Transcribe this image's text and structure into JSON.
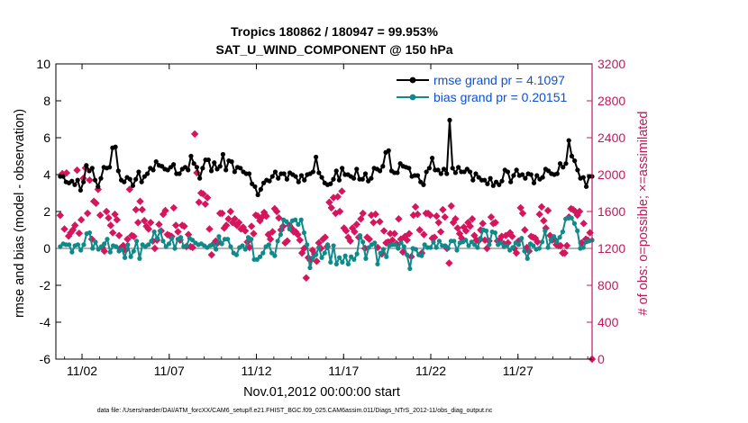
{
  "chart_data": {
    "type": "line",
    "title_line1": "Tropics 180862 / 180947 = 99.953%",
    "title_line2": "SAT_U_WIND_COMPONENT @ 150 hPa",
    "xlabel": "Nov.01,2012 00:00:00 start",
    "ylabel_left": "rmse and bias (model - observation)",
    "ylabel_right": "# of obs: o=possible; ×=assimilated",
    "footer": "data file: /Users/raeder/DAI/ATM_forcXX/CAM6_setup/f.e21.FHIST_BGC.f09_025.CAM6assim.011/Diags_NTrS_2012-11/obs_diag_output.nc",
    "xlim": [
      0.5,
      31.25
    ],
    "ylim_left": [
      -6,
      10
    ],
    "ylim_right": [
      0,
      3200
    ],
    "x_ticks": [
      {
        "value": 2,
        "label": "11/02"
      },
      {
        "value": 7,
        "label": "11/07"
      },
      {
        "value": 12,
        "label": "11/12"
      },
      {
        "value": 17,
        "label": "11/17"
      },
      {
        "value": 22,
        "label": "11/22"
      },
      {
        "value": 27,
        "label": "11/27"
      }
    ],
    "y_ticks_left": [
      -6,
      -4,
      -2,
      0,
      2,
      4,
      6,
      8,
      10
    ],
    "y_ticks_right": [
      0,
      400,
      800,
      1200,
      1600,
      2000,
      2400,
      2800,
      3200
    ],
    "zero_line": 0,
    "colors": {
      "rmse": "#000000",
      "bias": "#0f8a8a",
      "obs": "#d6155d",
      "right_axis": "#c2185b",
      "legend_text": "#0a4fe0",
      "zero_line": "#b4b4b4"
    },
    "series": [
      {
        "name": "rmse grand pr = 4.1097",
        "key": "rmse",
        "axis": "left",
        "values": [
          3.9,
          3.9,
          3.6,
          3.55,
          3.65,
          3.45,
          3.7,
          3.15,
          3.6,
          4.5,
          4.2,
          4.35,
          3.7,
          3.35,
          3.8,
          4.4,
          4.35,
          4.4,
          5.45,
          5.5,
          4.2,
          3.7,
          3.6,
          3.85,
          3.75,
          3.4,
          3.75,
          4.15,
          3.6,
          3.9,
          4.05,
          4.35,
          4.25,
          4.7,
          4.5,
          4.45,
          4.3,
          4.25,
          4.4,
          4.55,
          4.05,
          4.05,
          4.3,
          4.4,
          4.25,
          5,
          4.6,
          4.4,
          3.8,
          4.35,
          4.8,
          4.8,
          4.2,
          4.65,
          4.3,
          4.45,
          5.1,
          4.25,
          4.75,
          4.7,
          4.15,
          4.4,
          4.35,
          4.15,
          4.05,
          4.05,
          3.5,
          3.35,
          2.9,
          3.2,
          3.55,
          3.7,
          3.65,
          3.9,
          4.15,
          3.8,
          4.05,
          4.05,
          3.75,
          4.1,
          4.0,
          3.9,
          3.6,
          3.95,
          3.7,
          4.0,
          4.05,
          4.15,
          4.95,
          4.1,
          3.85,
          3.55,
          3.45,
          3.5,
          3.75,
          4.2,
          3.7,
          4.35,
          4.0,
          4.0,
          3.9,
          3.8,
          4.3,
          3.75,
          3.75,
          4.05,
          3.65,
          3.8,
          4.35,
          4.3,
          4.2,
          4.45,
          5.2,
          5.3,
          4.2,
          4.1,
          4.1,
          4.6,
          4.45,
          4.4,
          4.35,
          3.9,
          3.95,
          3.95,
          3.6,
          3.45,
          4.15,
          4.35,
          4.9,
          4.25,
          4.25,
          4.05,
          4.3,
          4.05,
          6.95,
          4.35,
          4.1,
          4.4,
          4.15,
          4.15,
          4.3,
          4.15,
          3.7,
          4.05,
          3.85,
          3.7,
          3.7,
          3.5,
          3.8,
          3.4,
          3.6,
          3.45,
          3.65,
          4.25,
          4.15,
          3.6,
          3.95,
          4.25,
          3.95,
          4.0,
          3.8,
          4.05,
          4.0,
          3.55,
          3.95,
          3.75,
          3.85,
          4.3,
          4.2,
          4.05,
          4.0,
          4.05,
          4.6,
          4.4,
          4.6,
          5.85,
          5.0,
          4.75,
          4.25,
          3.8,
          3.85,
          3.35,
          3.9,
          3.9
        ]
      },
      {
        "name": "bias grand pr = 0.20151",
        "key": "bias",
        "axis": "left",
        "values": [
          0.1,
          0.25,
          0.2,
          0.2,
          -0.2,
          0.15,
          0.2,
          -0.1,
          0.2,
          0.8,
          0.85,
          0.0,
          0.35,
          -0.05,
          0.1,
          0.25,
          0.5,
          -0.2,
          0.15,
          0.1,
          -0.15,
          -0.05,
          -0.5,
          0.2,
          -0.45,
          -0.15,
          0.4,
          -0.55,
          0.2,
          0.1,
          0.2,
          0.4,
          0.9,
          0.55,
          0.95,
          0.4,
          0.1,
          0.25,
          0.55,
          0.0,
          0.5,
          0.6,
          0.1,
          0.15,
          0.55,
          0.45,
          0.3,
          0.2,
          0.25,
          0.15,
          0.05,
          0.15,
          0.2,
          -0.05,
          0.65,
          0.25,
          0.5,
          0.5,
          0.1,
          -0.25,
          -0.35,
          0.05,
          0.15,
          -0.05,
          0.6,
          0.5,
          -0.6,
          -0.6,
          -0.45,
          -0.25,
          0.1,
          0.2,
          -0.25,
          -0.4,
          0.4,
          0.75,
          1.55,
          1.45,
          1.05,
          1.5,
          1.55,
          1.3,
          1.55,
          0.85,
          0.2,
          -1.05,
          -0.5,
          -0.35,
          0.05,
          -0.5,
          -0.25,
          0.2,
          -0.75,
          0.15,
          -0.85,
          -0.5,
          -0.75,
          -0.4,
          -0.85,
          -0.45,
          -0.6,
          -0.3,
          0.7,
          0.35,
          -0.55,
          0.05,
          0.2,
          0.3,
          -0.85,
          -0.25,
          -0.05,
          -0.45,
          0.15,
          0.2,
          0.2,
          0.0,
          0.3,
          0.1,
          -0.35,
          -1.1,
          0.0,
          -0.05,
          -0.35,
          -0.4,
          0.2,
          0.05,
          0.05,
          0.35,
          0.05,
          0.4,
          0.15,
          0.15,
          0.0,
          0.4,
          0.4,
          -0.1,
          0.3,
          0.35,
          0.45,
          0.15,
          0.35,
          0.2,
          0.05,
          0.55,
          1.0,
          0.95,
          0.2,
          0.9,
          0.85,
          0.2,
          0.3,
          0.1,
          0.15,
          -0.1,
          0.05,
          0.3,
          0.2,
          0.55,
          -0.15,
          -0.55,
          0.25,
          0.15,
          -0.05,
          0.0,
          0.35,
          0.95,
          0.05,
          0.45,
          0.65,
          0.35,
          0.6,
          0.9,
          1.6,
          1.65,
          1.65,
          1.35,
          0.95,
          0.0,
          0.05,
          0.35,
          0.4,
          0.45
        ]
      },
      {
        "name": "# obs assimilated",
        "key": "obs",
        "axis": "right",
        "values": [
          1558,
          2010,
          1410,
          2018,
          1334,
          1370,
          1400,
          1450,
          2048,
          1364,
          1510,
          1960,
          2072,
          1580,
          1940,
          1300,
          1710,
          1690,
          1840,
          1560,
          1210,
          1170,
          1600,
          1530,
          1450,
          1370,
          1570,
          1510,
          1340,
          1210,
          1230,
          1180,
          1300,
          1840,
          1340,
          1330,
          1620,
          1480,
          1710,
          1620,
          1500,
          1440,
          1410,
          1480,
          1280,
          1200,
          1290,
          1460,
          1390,
          1570,
          1610,
          1350,
          1340,
          1330,
          1640,
          1450,
          1380,
          1290,
          1450,
          1440,
          1220,
          1350,
          1220,
          1210,
          2440,
          2020,
          1700,
          1800,
          1790,
          1680,
          1750,
          1410,
          1130,
          1250,
          1280,
          1260,
          1580,
          1580,
          1420,
          1450,
          1520,
          1600,
          1480,
          1520,
          1450,
          1480,
          1410,
          1430,
          1390,
          1270,
          1210,
          1440,
          1360,
          1560,
          1550,
          1500,
          1540,
          1590,
          1550,
          1350,
          1300,
          1380,
          1630,
          1600,
          1530,
          1400,
          1440,
          1260,
          1280,
          1450,
          1420,
          1380,
          1380,
          1350,
          1290,
          1150,
          1200,
          880,
          1100,
          1070,
          1180,
          1140,
          1060,
          1260,
          1200,
          1300,
          1320,
          1220,
          1700,
          1640,
          1750,
          1580,
          1760,
          1600,
          1820,
          1420,
          1390,
          1320,
          1280,
          1420,
          1380,
          1460,
          1320,
          1520,
          1580,
          1200,
          1320,
          1300,
          1560,
          1480,
          1570,
          1210,
          1490,
          1140,
          1390,
          1260,
          1270,
          1360,
          1290,
          1360,
          1250,
          1520,
          1300,
          1160,
          1330,
          1290,
          1360,
          1110,
          1560,
          1650,
          1570,
          1400,
          1150,
          1350,
          1580,
          1580,
          1560,
          1310,
          1320,
          1550,
          1480,
          1380,
          1620,
          1540,
          1200,
          1040,
          1660,
          1480,
          1520,
          1420,
          1360,
          1310,
          1430,
          1390,
          1480,
          1440,
          1520,
          1340,
          1290,
          1280,
          1400,
          1470,
          1290,
          1200,
          1280,
          1540,
          1470,
          1480,
          1280,
          1290,
          1330,
          1250,
          1340,
          1260,
          1370,
          1330,
          1200,
          1150,
          1280,
          1640,
          1580,
          1400,
          1210,
          1170,
          1330,
          1320,
          1310,
          1270,
          1570,
          1650,
          1500,
          1420,
          1610,
          1340,
          1290,
          1300,
          1240,
          1230,
          1230,
          1150,
          1150,
          1230,
          1540,
          1630,
          1620,
          1600,
          1560,
          1600,
          1260,
          1470,
          1300,
          1290,
          1370,
          0
        ]
      }
    ],
    "legend_location": "top-right"
  }
}
